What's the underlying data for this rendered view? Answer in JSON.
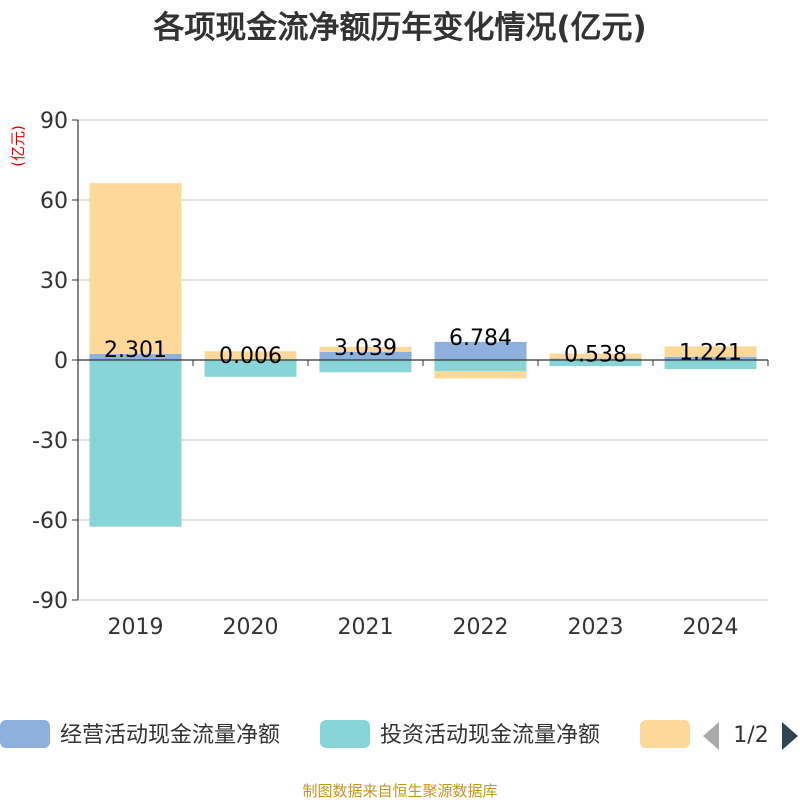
{
  "chart_data": {
    "type": "bar",
    "title": "各项现金流净额历年变化情况(亿元)",
    "unit_label": "(亿元)",
    "categories": [
      "2019",
      "2020",
      "2021",
      "2022",
      "2023",
      "2024"
    ],
    "ylim": [
      -90,
      90
    ],
    "yticks": [
      90,
      60,
      30,
      0,
      -30,
      -60,
      -90
    ],
    "ytick_labels": [
      "90",
      "60",
      "30",
      "0",
      "-30",
      "-60",
      "-90"
    ],
    "grid": true,
    "stacked": true,
    "series": [
      {
        "name": "经营活动现金流量净额",
        "color": "#8eb0dc",
        "values": [
          2.301,
          0.006,
          3.039,
          6.784,
          0.538,
          1.221
        ]
      },
      {
        "name": "投资活动现金流量净额",
        "color": "#88d5d8",
        "values": [
          -62.5,
          -6.3,
          -4.6,
          -4.2,
          -2.3,
          -3.4
        ]
      },
      {
        "name": "",
        "color": "#fdd899",
        "values": [
          64.0,
          3.3,
          1.9,
          -2.7,
          1.9,
          3.9
        ]
      }
    ],
    "data_labels": [
      "2.301",
      "0.006",
      "3.039",
      "6.784",
      "0.538",
      "1.221"
    ],
    "legend_position": "bottom",
    "legend_page": "1/2"
  },
  "source_text": "制图数据来自恒生聚源数据库"
}
